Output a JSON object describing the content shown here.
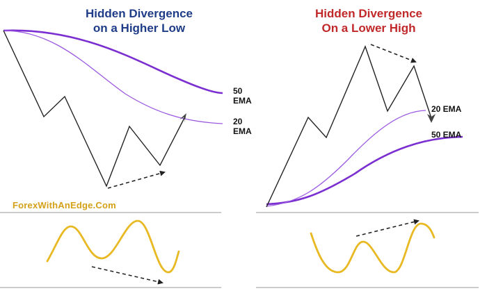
{
  "left_panel": {
    "title": "Hidden Divergence\non a Higher Low",
    "ema_50_label": "50\nEMA",
    "ema_20_label": "20\nEMA"
  },
  "right_panel": {
    "title": "Hidden Divergence\nOn a Lower High",
    "ema_20_label": "20 EMA",
    "ema_50_label": "50 EMA"
  },
  "brand": "ForexWithAnEdge.Com",
  "colors": {
    "left_title": "#1f3c88",
    "right_title": "#c0282a",
    "ema": "#7b2fd0",
    "price": "#222222",
    "oscillator": "#e8b923",
    "separator": "#9a9a9a"
  }
}
